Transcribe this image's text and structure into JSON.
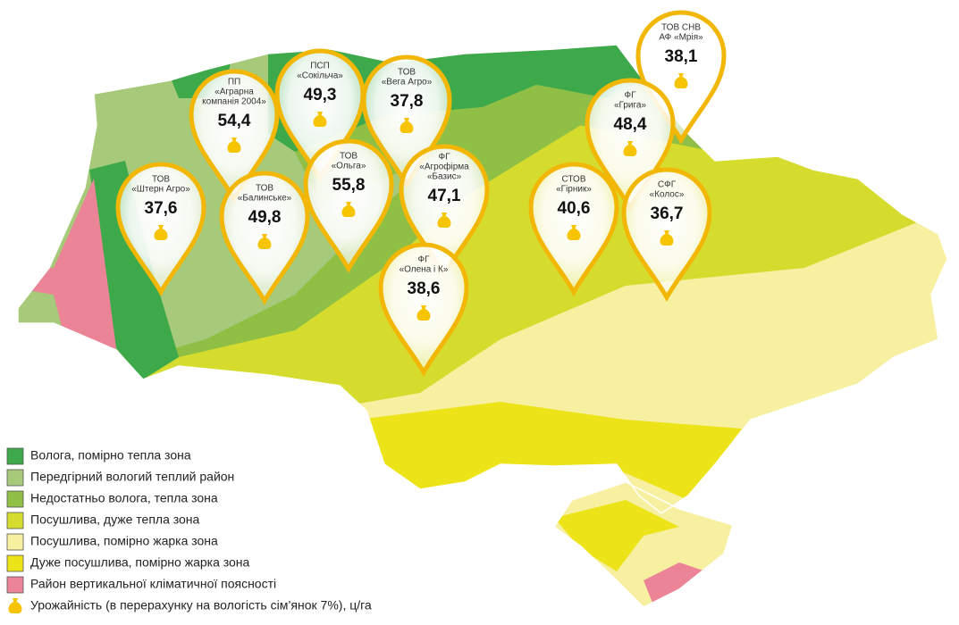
{
  "legend": [
    {
      "label": "Волога, помірно тепла зона",
      "color": "#3ea94a"
    },
    {
      "label": "Передгірний вологий теплий район",
      "color": "#a7c97a"
    },
    {
      "label": "Недостатньо волога, тепла зона",
      "color": "#8fbf45"
    },
    {
      "label": "Посушлива, дуже тепла зона",
      "color": "#d6dc2e"
    },
    {
      "label": "Посушлива, помірно жарка зона",
      "color": "#f7f0a0"
    },
    {
      "label": "Дуже посушлива, помірно жарка зона",
      "color": "#ece318"
    },
    {
      "label": "Район вертикальної кліматичної поясності",
      "color": "#ea8496"
    }
  ],
  "yield_note": "Урожайність (в перерахунку на вологість сім’янок 7%), ц/га",
  "pins": [
    {
      "lines": [
        "ТОВ СНВ",
        "АФ «Мрія»"
      ],
      "value": "38,1"
    },
    {
      "lines": [
        "ПП",
        "«Аграрна",
        "компанія 2004»"
      ],
      "value": "54,4"
    },
    {
      "lines": [
        "ПСП",
        "«Сокільча»"
      ],
      "value": "49,3"
    },
    {
      "lines": [
        "ТОВ",
        "«Вега Агро»"
      ],
      "value": "37,8"
    },
    {
      "lines": [
        "ФГ",
        "«Грига»"
      ],
      "value": "48,4"
    },
    {
      "lines": [
        "ТОВ",
        "«Штерн Агро»"
      ],
      "value": "37,6"
    },
    {
      "lines": [
        "ТОВ",
        "«Балинське»"
      ],
      "value": "49,8"
    },
    {
      "lines": [
        "ТОВ",
        "«Ольга»"
      ],
      "value": "55,8"
    },
    {
      "lines": [
        "ФГ",
        "«Агрофірма",
        "«Базис»"
      ],
      "value": "47,1"
    },
    {
      "lines": [
        "СТОВ",
        "«Гірник»"
      ],
      "value": "40,6"
    },
    {
      "lines": [
        "СФГ",
        "«Колос»"
      ],
      "value": "36,7"
    },
    {
      "lines": [
        "ФГ",
        "«Олена і К»"
      ],
      "value": "38,6"
    }
  ]
}
